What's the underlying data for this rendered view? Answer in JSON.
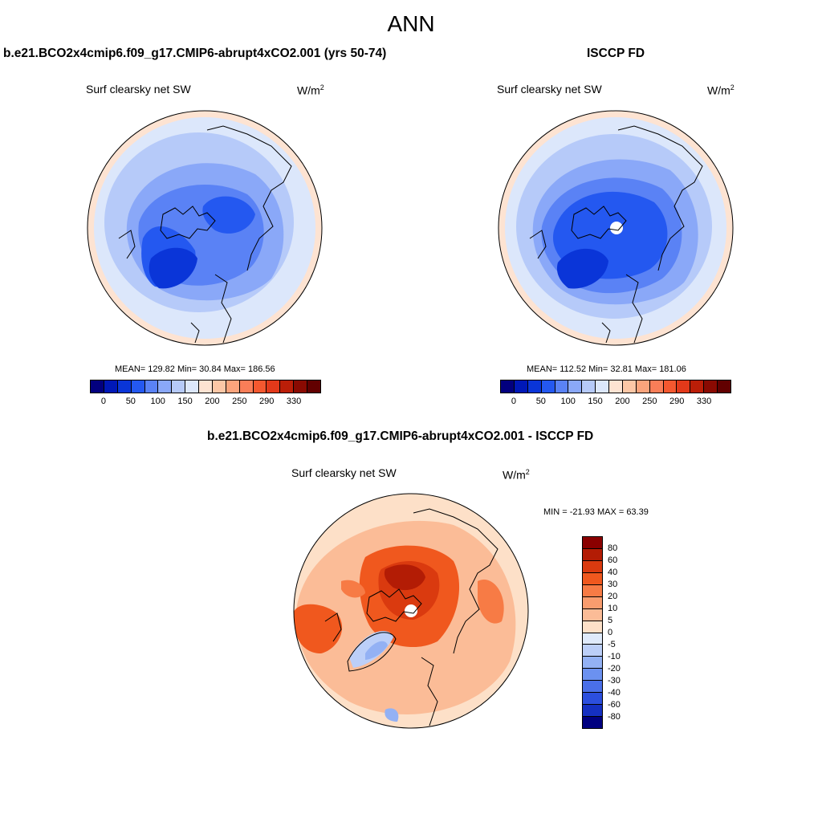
{
  "main_title": "ANN",
  "panels": [
    {
      "title": "b.e21.BCO2x4cmip6.f09_g17.CMIP6-abrupt4xCO2.001 (yrs 50-74)",
      "variable": "Surf clearsky net SW",
      "units_base": "W/m",
      "units_exp": "2",
      "stats": "MEAN= 129.82  Min=  30.84  Max= 186.56"
    },
    {
      "title": "ISCCP FD",
      "variable": "Surf clearsky net SW",
      "units_base": "W/m",
      "units_exp": "2",
      "stats": "MEAN= 112.52  Min=  32.81  Max= 181.06"
    },
    {
      "title": "b.e21.BCO2x4cmip6.f09_g17.CMIP6-abrupt4xCO2.001 - ISCCP FD",
      "variable": "Surf clearsky net SW",
      "units_base": "W/m",
      "units_exp": "2",
      "stats": "MIN = -21.93 MAX =  63.39"
    }
  ],
  "abs_colorbar": {
    "colors": [
      "#02007e",
      "#0018b7",
      "#0a35d8",
      "#2458f0",
      "#5a82f5",
      "#8aa8f8",
      "#b6caf9",
      "#dce7fb",
      "#fde3d2",
      "#fcc7a6",
      "#fba47c",
      "#f97e58",
      "#f4582f",
      "#e2391a",
      "#bb1e08",
      "#8a0a02",
      "#620000"
    ],
    "labels": [
      "0",
      "50",
      "100",
      "150",
      "200",
      "250",
      "290",
      "330"
    ]
  },
  "diff_colorbar": {
    "colors": [
      "#8a0000",
      "#b31c05",
      "#da3a0f",
      "#f0581e",
      "#f77b45",
      "#f99c6e",
      "#fbbc97",
      "#fde0c8",
      "#dfeafb",
      "#bccff8",
      "#93b1f4",
      "#6b91f0",
      "#4a6fe8",
      "#2c4fde",
      "#1530c2",
      "#000080"
    ],
    "labels": [
      "80",
      "60",
      "40",
      "30",
      "20",
      "10",
      "5",
      "0",
      "-5",
      "-10",
      "-20",
      "-30",
      "-40",
      "-60",
      "-80"
    ]
  }
}
